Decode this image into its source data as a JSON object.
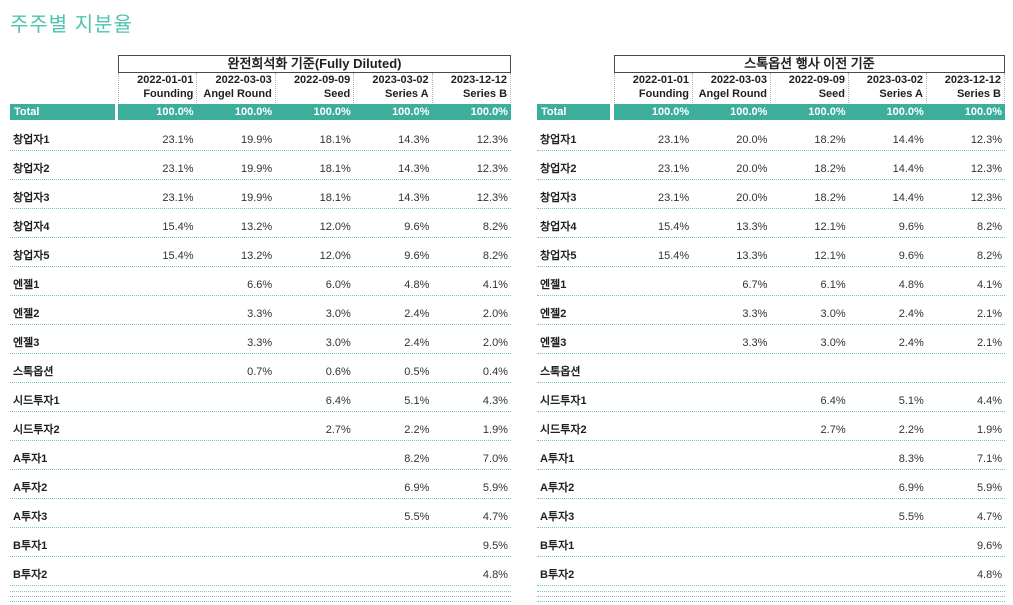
{
  "page": {
    "title": "주주별 지분율"
  },
  "colors": {
    "accent_teal": "#3dae9c",
    "title_teal": "#4fc3b0",
    "row_divider_teal": "#7cc4b8",
    "header_divider_gray": "#b3b3b3"
  },
  "tables": [
    {
      "title": "완전희석화 기준(Fully Diluted)",
      "total_label": "Total",
      "columns": [
        {
          "date": "2022-01-01",
          "round": "Founding"
        },
        {
          "date": "2022-03-03",
          "round": "Angel Round"
        },
        {
          "date": "2022-09-09",
          "round": "Seed"
        },
        {
          "date": "2023-03-02",
          "round": "Series A"
        },
        {
          "date": "2023-12-12",
          "round": "Series B"
        }
      ],
      "total_values": [
        "100.0%",
        "100.0%",
        "100.0%",
        "100.0%",
        "100.0%"
      ],
      "rows": [
        {
          "label": "창업자1",
          "values": [
            "23.1%",
            "19.9%",
            "18.1%",
            "14.3%",
            "12.3%"
          ]
        },
        {
          "label": "창업자2",
          "values": [
            "23.1%",
            "19.9%",
            "18.1%",
            "14.3%",
            "12.3%"
          ]
        },
        {
          "label": "창업자3",
          "values": [
            "23.1%",
            "19.9%",
            "18.1%",
            "14.3%",
            "12.3%"
          ]
        },
        {
          "label": "창업자4",
          "values": [
            "15.4%",
            "13.2%",
            "12.0%",
            "9.6%",
            "8.2%"
          ]
        },
        {
          "label": "창업자5",
          "values": [
            "15.4%",
            "13.2%",
            "12.0%",
            "9.6%",
            "8.2%"
          ]
        },
        {
          "label": "엔젤1",
          "values": [
            "",
            "6.6%",
            "6.0%",
            "4.8%",
            "4.1%"
          ]
        },
        {
          "label": "엔젤2",
          "values": [
            "",
            "3.3%",
            "3.0%",
            "2.4%",
            "2.0%"
          ]
        },
        {
          "label": "엔젤3",
          "values": [
            "",
            "3.3%",
            "3.0%",
            "2.4%",
            "2.0%"
          ]
        },
        {
          "label": "스톡옵션",
          "values": [
            "",
            "0.7%",
            "0.6%",
            "0.5%",
            "0.4%"
          ]
        },
        {
          "label": "시드투자1",
          "values": [
            "",
            "",
            "6.4%",
            "5.1%",
            "4.3%"
          ]
        },
        {
          "label": "시드투자2",
          "values": [
            "",
            "",
            "2.7%",
            "2.2%",
            "1.9%"
          ]
        },
        {
          "label": "A투자1",
          "values": [
            "",
            "",
            "",
            "8.2%",
            "7.0%"
          ]
        },
        {
          "label": "A투자2",
          "values": [
            "",
            "",
            "",
            "6.9%",
            "5.9%"
          ]
        },
        {
          "label": "A투자3",
          "values": [
            "",
            "",
            "",
            "5.5%",
            "4.7%"
          ]
        },
        {
          "label": "B투자1",
          "values": [
            "",
            "",
            "",
            "",
            "9.5%"
          ]
        },
        {
          "label": "B투자2",
          "values": [
            "",
            "",
            "",
            "",
            "4.8%"
          ]
        }
      ]
    },
    {
      "title": "스톡옵션 행사 이전 기준",
      "total_label": "Total",
      "columns": [
        {
          "date": "2022-01-01",
          "round": "Founding"
        },
        {
          "date": "2022-03-03",
          "round": "Angel Round"
        },
        {
          "date": "2022-09-09",
          "round": "Seed"
        },
        {
          "date": "2023-03-02",
          "round": "Series A"
        },
        {
          "date": "2023-12-12",
          "round": "Series B"
        }
      ],
      "total_values": [
        "100.0%",
        "100.0%",
        "100.0%",
        "100.0%",
        "100.0%"
      ],
      "rows": [
        {
          "label": "창업자1",
          "values": [
            "23.1%",
            "20.0%",
            "18.2%",
            "14.4%",
            "12.3%"
          ]
        },
        {
          "label": "창업자2",
          "values": [
            "23.1%",
            "20.0%",
            "18.2%",
            "14.4%",
            "12.3%"
          ]
        },
        {
          "label": "창업자3",
          "values": [
            "23.1%",
            "20.0%",
            "18.2%",
            "14.4%",
            "12.3%"
          ]
        },
        {
          "label": "창업자4",
          "values": [
            "15.4%",
            "13.3%",
            "12.1%",
            "9.6%",
            "8.2%"
          ]
        },
        {
          "label": "창업자5",
          "values": [
            "15.4%",
            "13.3%",
            "12.1%",
            "9.6%",
            "8.2%"
          ]
        },
        {
          "label": "엔젤1",
          "values": [
            "",
            "6.7%",
            "6.1%",
            "4.8%",
            "4.1%"
          ]
        },
        {
          "label": "엔젤2",
          "values": [
            "",
            "3.3%",
            "3.0%",
            "2.4%",
            "2.1%"
          ]
        },
        {
          "label": "엔젤3",
          "values": [
            "",
            "3.3%",
            "3.0%",
            "2.4%",
            "2.1%"
          ]
        },
        {
          "label": "스톡옵션",
          "values": [
            "",
            "",
            "",
            "",
            ""
          ]
        },
        {
          "label": "시드투자1",
          "values": [
            "",
            "",
            "6.4%",
            "5.1%",
            "4.4%"
          ]
        },
        {
          "label": "시드투자2",
          "values": [
            "",
            "",
            "2.7%",
            "2.2%",
            "1.9%"
          ]
        },
        {
          "label": "A투자1",
          "values": [
            "",
            "",
            "",
            "8.3%",
            "7.1%"
          ]
        },
        {
          "label": "A투자2",
          "values": [
            "",
            "",
            "",
            "6.9%",
            "5.9%"
          ]
        },
        {
          "label": "A투자3",
          "values": [
            "",
            "",
            "",
            "5.5%",
            "4.7%"
          ]
        },
        {
          "label": "B투자1",
          "values": [
            "",
            "",
            "",
            "",
            "9.6%"
          ]
        },
        {
          "label": "B투자2",
          "values": [
            "",
            "",
            "",
            "",
            "4.8%"
          ]
        }
      ]
    }
  ]
}
